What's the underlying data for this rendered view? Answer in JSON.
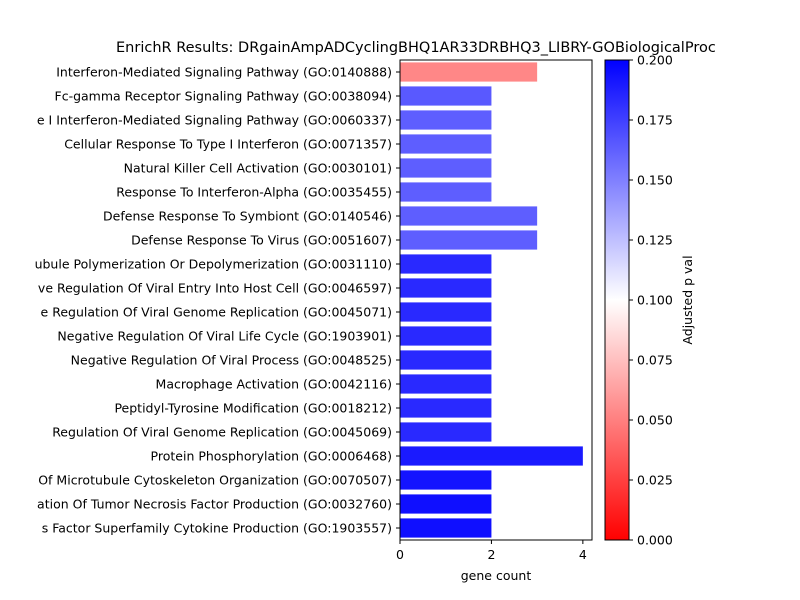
{
  "chart_data": {
    "type": "bar",
    "orientation": "horizontal",
    "title": "EnrichR Results: DRgainAmpADCyclingBHQ1AR33DRBHQ3_LIBRY-GOBiologicalProc",
    "xlabel": "gene count",
    "xlim": [
      0,
      4.2
    ],
    "xticks": [
      0,
      2,
      4
    ],
    "grid": false,
    "categories": [
      "Interferon-Mediated Signaling Pathway (GO:0140888)",
      "Fc-gamma Receptor Signaling Pathway (GO:0038094)",
      "e I Interferon-Mediated Signaling Pathway (GO:0060337)",
      "Cellular Response To Type I Interferon (GO:0071357)",
      "Natural Killer Cell Activation (GO:0030101)",
      "Response To Interferon-Alpha (GO:0035455)",
      "Defense Response To Symbiont (GO:0140546)",
      "Defense Response To Virus (GO:0051607)",
      "ubule Polymerization Or Depolymerization (GO:0031110)",
      "ve Regulation Of Viral Entry Into Host Cell (GO:0046597)",
      "e Regulation Of Viral Genome Replication (GO:0045071)",
      "Negative Regulation Of Viral Life Cycle (GO:1903901)",
      "Negative Regulation Of Viral Process (GO:0048525)",
      "Macrophage Activation (GO:0042116)",
      "Peptidyl-Tyrosine Modification (GO:0018212)",
      "Regulation Of Viral Genome Replication (GO:0045069)",
      "Protein Phosphorylation (GO:0006468)",
      "Of Microtubule Cytoskeleton Organization (GO:0070507)",
      "ation Of Tumor Necrosis Factor Production (GO:0032760)",
      "s Factor Superfamily Cytokine Production (GO:1903557)"
    ],
    "values": [
      3,
      2,
      2,
      2,
      2,
      2,
      3,
      3,
      2,
      2,
      2,
      2,
      2,
      2,
      2,
      2,
      4,
      2,
      2,
      2
    ],
    "adjusted_p": [
      0.053,
      0.165,
      0.163,
      0.163,
      0.163,
      0.163,
      0.163,
      0.163,
      0.184,
      0.184,
      0.184,
      0.184,
      0.184,
      0.184,
      0.184,
      0.184,
      0.19,
      0.192,
      0.194,
      0.194
    ],
    "colorbar": {
      "label": "Adjusted p val",
      "range": [
        0,
        0.2
      ],
      "ticks": [
        0,
        0.025,
        0.05,
        0.075,
        0.1,
        0.125,
        0.15,
        0.175,
        0.2
      ],
      "tick_labels": [
        "0.000",
        "0.025",
        "0.050",
        "0.075",
        "0.100",
        "0.125",
        "0.150",
        "0.175",
        "0.200"
      ],
      "colors": [
        "#ff0000",
        "#ffffff",
        "#0000ff"
      ]
    }
  }
}
